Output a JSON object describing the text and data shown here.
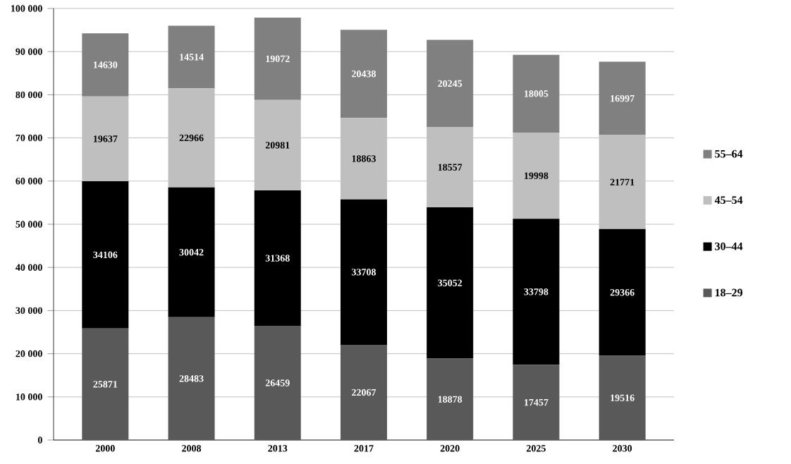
{
  "chart_data": {
    "type": "bar",
    "stacked": true,
    "categories": [
      "2000",
      "2008",
      "2013",
      "2017",
      "2020",
      "2025",
      "2030"
    ],
    "series": [
      {
        "name": "18–29",
        "color": "#595959",
        "values": [
          25871,
          28483,
          26459,
          22067,
          18878,
          17457,
          19516
        ]
      },
      {
        "name": "30–44",
        "color": "#000000",
        "values": [
          34106,
          30042,
          31368,
          33708,
          35052,
          33798,
          29366
        ]
      },
      {
        "name": "45–54",
        "color": "#bfbfbf",
        "values": [
          19637,
          22966,
          20981,
          18863,
          18557,
          19998,
          21771
        ]
      },
      {
        "name": "55–64",
        "color": "#808080",
        "values": [
          14630,
          14514,
          19072,
          20438,
          20245,
          18005,
          16997
        ]
      }
    ],
    "ylim": [
      0,
      100000
    ],
    "yticks": [
      0,
      {
        "value": 10000,
        "label": "10 000"
      },
      {
        "value": 20000,
        "label": "20 000"
      },
      {
        "value": 30000,
        "label": "30 000"
      },
      {
        "value": 40000,
        "label": "40 000"
      },
      {
        "value": 50000,
        "label": "50 000"
      },
      {
        "value": 60000,
        "label": "60 000"
      },
      {
        "value": 70000,
        "label": "70 000"
      },
      {
        "value": 80000,
        "label": "80 000"
      },
      {
        "value": 90000,
        "label": "90 000"
      },
      {
        "value": 100000,
        "label": "100 000"
      }
    ],
    "grid": "y",
    "legend": "right",
    "data_labels": true
  }
}
